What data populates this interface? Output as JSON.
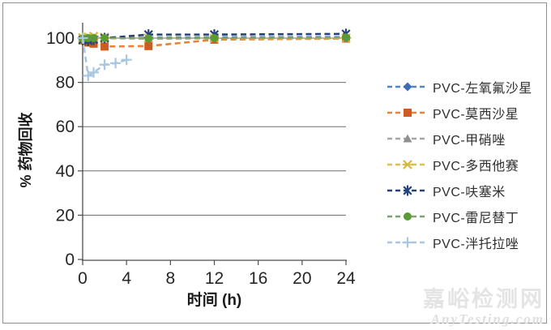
{
  "figure": {
    "watermark": {
      "site_name": "嘉峪检测网",
      "site_url": "AnyTesting.com"
    }
  },
  "chart_data": {
    "type": "line",
    "title": "",
    "xlabel": "时间 (h)",
    "ylabel": "% 药物回收",
    "xlim": [
      0,
      24
    ],
    "ylim": [
      0,
      106.5
    ],
    "xticks": [
      0,
      4,
      8,
      12,
      16,
      20,
      24
    ],
    "yticks": [
      0,
      20,
      40,
      60,
      80,
      100
    ],
    "grid": "horizontal",
    "grid_color": "#6b6b6b",
    "axis_color": "#4d4d4d",
    "tick_label_color": "#262626",
    "legend_position": "right",
    "line_style": "dashed",
    "series": [
      {
        "name": "PVC-左氧氟沙星",
        "marker": "diamond",
        "line_color": "#5585c0",
        "marker_color": "#3d6cb4",
        "x": [
          0,
          0.5,
          1,
          2,
          6,
          12,
          24
        ],
        "y": [
          99.5,
          100,
          100,
          100,
          100.3,
          100.4,
          100.5
        ]
      },
      {
        "name": "PVC-莫西沙星",
        "marker": "square",
        "line_color": "#e8823b",
        "marker_color": "#cf5b22",
        "x": [
          0,
          0.5,
          1,
          2,
          6,
          12,
          24
        ],
        "y": [
          99,
          98,
          97.5,
          96.2,
          96.4,
          99.3,
          99.8
        ]
      },
      {
        "name": "PVC-甲硝唑",
        "marker": "triangle",
        "line_color": "#a6a6a6",
        "marker_color": "#8f9091",
        "x": [
          0,
          0.5,
          1,
          2,
          6,
          12,
          24
        ],
        "y": [
          100,
          99.8,
          100,
          100,
          99.8,
          99.9,
          100
        ]
      },
      {
        "name": "PVC-多西他赛",
        "marker": "xstar",
        "line_color": "#dfc04a",
        "marker_color": "#d9b63d",
        "x": [
          0,
          0.5,
          1,
          2,
          6,
          12,
          24
        ],
        "y": [
          100.2,
          100.5,
          100.8,
          100.4,
          100,
          99.9,
          100
        ]
      },
      {
        "name": "PVC-呋塞米",
        "marker": "asterisk",
        "line_color": "#264478",
        "marker_color": "#264478",
        "x": [
          0,
          0.5,
          1,
          2,
          6,
          12,
          24
        ],
        "y": [
          99.2,
          98.8,
          99.3,
          100,
          101.6,
          101.6,
          101.9
        ]
      },
      {
        "name": "PVC-雷尼替丁",
        "marker": "circle",
        "line_color": "#7fa36b",
        "marker_color": "#5b9b37",
        "x": [
          0,
          0.5,
          1,
          2,
          6,
          12,
          24
        ],
        "y": [
          99.8,
          100,
          100,
          100,
          99.8,
          100,
          100.3
        ]
      },
      {
        "name": "PVC-泮托拉唑",
        "marker": "plus",
        "line_color": "#a9c7e1",
        "marker_color": "#a9c7e1",
        "x": [
          0,
          0.5,
          1,
          2,
          3,
          4
        ],
        "y": [
          100,
          83,
          84.5,
          88,
          88.7,
          90.2
        ]
      }
    ]
  }
}
